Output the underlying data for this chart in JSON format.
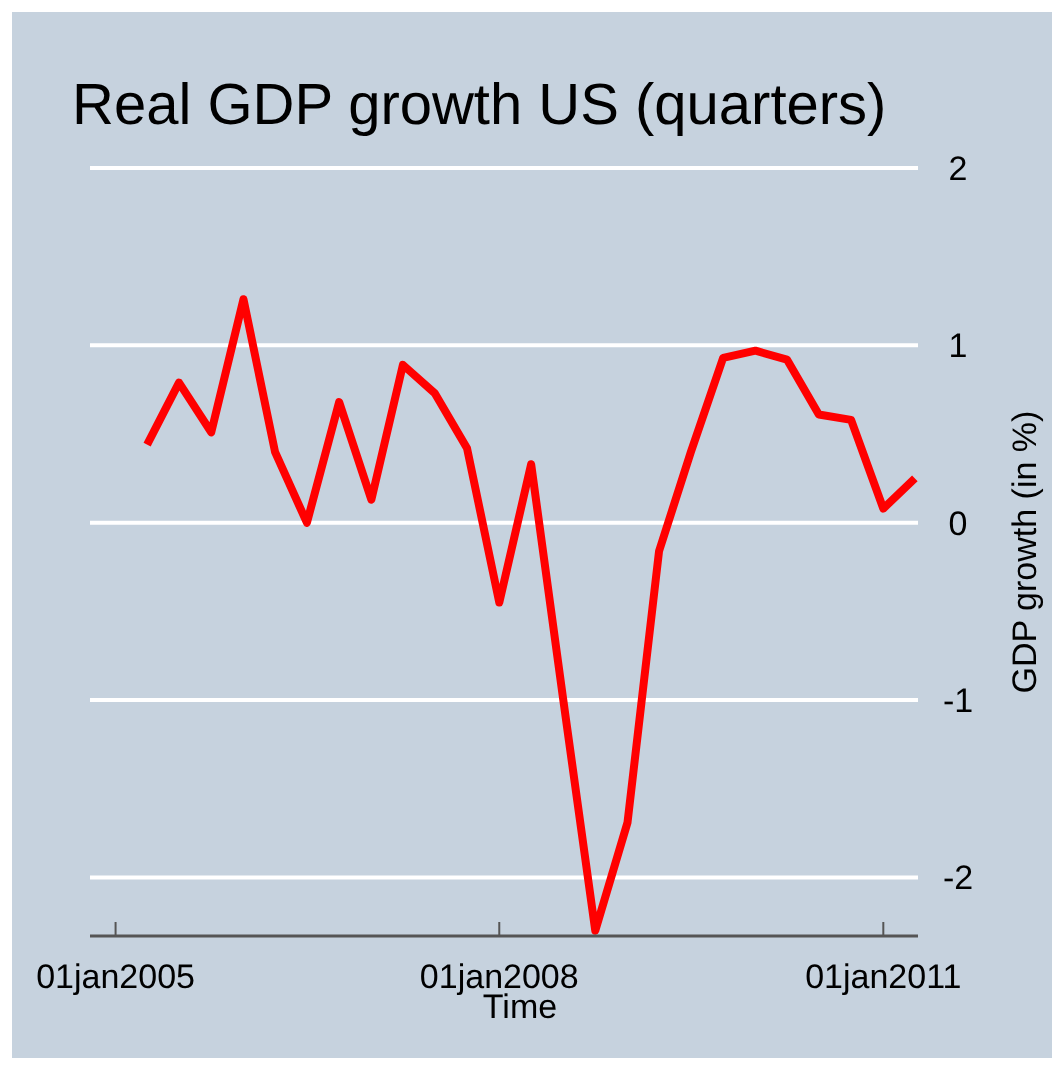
{
  "chart_data": {
    "type": "line",
    "title": "Real GDP growth US (quarters)",
    "xlabel": "Time",
    "ylabel": "GDP growth (in %)",
    "x": [
      "2005-04",
      "2005-07",
      "2005-10",
      "2006-01",
      "2006-04",
      "2006-07",
      "2006-10",
      "2007-01",
      "2007-04",
      "2007-07",
      "2007-10",
      "2008-01",
      "2008-04",
      "2008-07",
      "2008-10",
      "2009-01",
      "2009-04",
      "2009-07",
      "2009-10",
      "2010-01",
      "2010-04",
      "2010-07",
      "2010-10",
      "2011-01",
      "2011-04"
    ],
    "series": [
      {
        "color": "#ff0000",
        "values": [
          0.44,
          0.79,
          0.51,
          1.26,
          0.4,
          0.0,
          0.68,
          0.13,
          0.89,
          0.73,
          0.42,
          -0.45,
          0.33,
          -0.99,
          -2.3,
          -1.69,
          -0.16,
          0.4,
          0.93,
          0.97,
          0.92,
          0.61,
          0.58,
          0.08,
          0.25
        ]
      }
    ],
    "xlim": [
      "2004-10-20",
      "2011-04-10"
    ],
    "xticks": [
      {
        "value": "2005-01-01",
        "label": "01jan2005"
      },
      {
        "value": "2008-01",
        "label": "01jan2008"
      },
      {
        "value": "2011-01",
        "label": "01jan2011"
      }
    ],
    "ylim": [
      -2.33,
      2
    ],
    "yticks": [
      -2,
      -1,
      0,
      1,
      2
    ],
    "grid": "y",
    "marker": "none",
    "line_style": "solid"
  }
}
